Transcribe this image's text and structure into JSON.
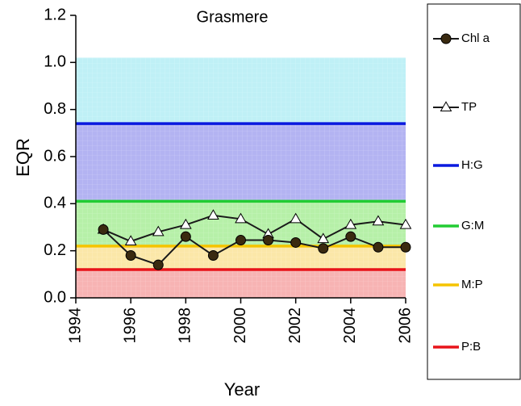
{
  "chart_data": {
    "type": "line",
    "title": "Grasmere",
    "x_label": "Year",
    "y_label": "EQR",
    "xlim": [
      1994,
      2006
    ],
    "ylim": [
      0,
      1.2
    ],
    "xticks": [
      1994,
      1996,
      1998,
      2000,
      2002,
      2004,
      2006
    ],
    "yticks": [
      {
        "value": 0,
        "label": "0.0"
      },
      {
        "value": 0.2,
        "label": "0.2"
      },
      {
        "value": 0.4,
        "label": "0.4"
      },
      {
        "value": 0.6,
        "label": "0.6"
      },
      {
        "value": 0.8,
        "label": "0.8"
      },
      {
        "value": 1.0,
        "label": "1.0"
      },
      {
        "value": 1.2,
        "label": "1.2"
      }
    ],
    "bands": [
      {
        "from": 0,
        "to": 0.12,
        "color": "#f7b3b3"
      },
      {
        "from": 0.12,
        "to": 0.22,
        "color": "#fbe7a8"
      },
      {
        "from": 0.22,
        "to": 0.41,
        "color": "#b6f0a8"
      },
      {
        "from": 0.41,
        "to": 0.74,
        "color": "#b3b3f2"
      },
      {
        "from": 0.74,
        "to": 1.02,
        "color": "#bff0f6"
      }
    ],
    "series": [
      {
        "name": "Chl a",
        "color": "#1a1a1a",
        "marker": "circle",
        "marker_fill": "#3a2a10",
        "x": [
          1995,
          1996,
          1997,
          1998,
          1999,
          2000,
          2001,
          2002,
          2003,
          2004,
          2005,
          2006
        ],
        "values": [
          0.29,
          0.18,
          0.14,
          0.26,
          0.18,
          0.245,
          0.245,
          0.235,
          0.21,
          0.26,
          0.215,
          0.215
        ]
      },
      {
        "name": "TP",
        "color": "#1a1a1a",
        "marker": "triangle",
        "marker_fill": "#ffffff",
        "x": [
          1995,
          1996,
          1997,
          1998,
          1999,
          2000,
          2001,
          2002,
          2003,
          2004,
          2005,
          2006
        ],
        "values": [
          0.29,
          0.24,
          0.28,
          0.31,
          0.35,
          0.335,
          0.27,
          0.335,
          0.25,
          0.31,
          0.325,
          0.31
        ]
      },
      {
        "name": "H:G",
        "color": "#0a1adf",
        "marker": "none",
        "x": [
          1994,
          2006
        ],
        "values": [
          0.74,
          0.74
        ]
      },
      {
        "name": "G:M",
        "color": "#22cc33",
        "marker": "none",
        "x": [
          1994,
          2006
        ],
        "values": [
          0.41,
          0.41
        ]
      },
      {
        "name": "M:P",
        "color": "#f5c400",
        "marker": "none",
        "x": [
          1994,
          2006
        ],
        "values": [
          0.22,
          0.22
        ]
      },
      {
        "name": "P:B",
        "color": "#e8141a",
        "marker": "none",
        "x": [
          1994,
          2006
        ],
        "values": [
          0.12,
          0.12
        ]
      }
    ]
  }
}
